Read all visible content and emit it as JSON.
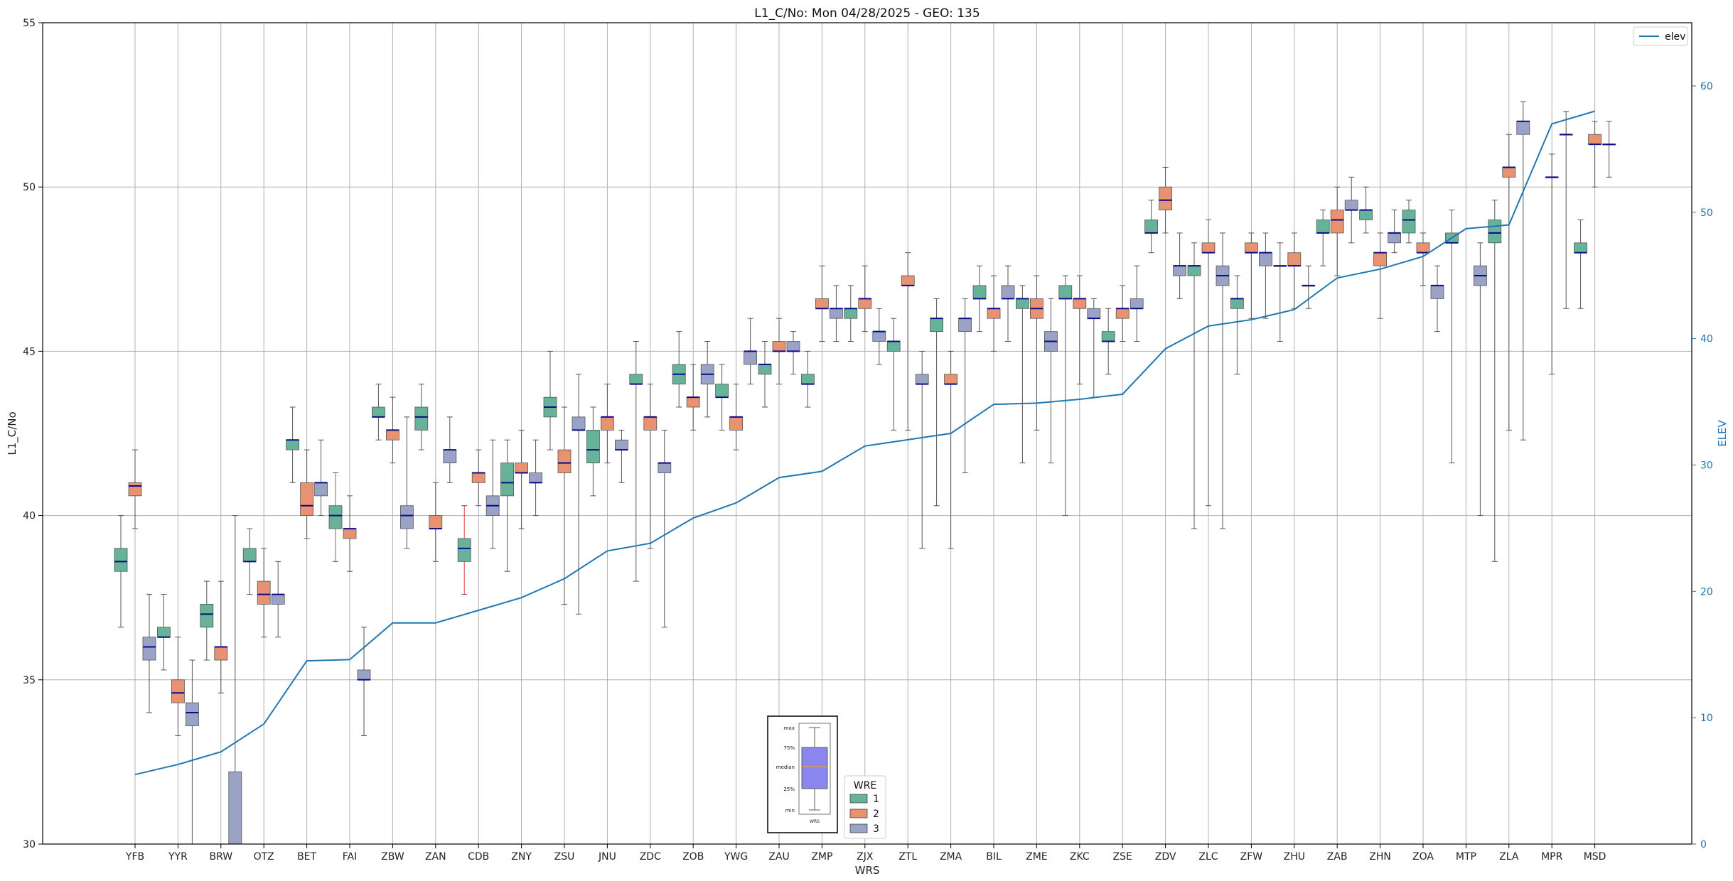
{
  "chart_data": {
    "type": "box",
    "title": "L1_C/No: Mon 04/28/2025 - GEO: 135",
    "xlabel": "WRS",
    "ylabel": "L1_C/No",
    "y2label": "ELEV",
    "ylim": [
      30,
      55
    ],
    "y2lim": [
      0,
      65
    ],
    "yticks": [
      30,
      35,
      40,
      45,
      50,
      55
    ],
    "y2ticks": [
      0,
      10,
      20,
      30,
      40,
      50,
      60
    ],
    "grid": true,
    "categories": [
      "YFB",
      "YYR",
      "BRW",
      "OTZ",
      "BET",
      "FAI",
      "ZBW",
      "ZAN",
      "CDB",
      "ZNY",
      "ZSU",
      "JNU",
      "ZDC",
      "ZOB",
      "YWG",
      "ZAU",
      "ZMP",
      "ZJX",
      "ZTL",
      "ZMA",
      "BIL",
      "ZME",
      "ZKC",
      "ZSE",
      "ZDV",
      "ZLC",
      "ZFW",
      "ZHU",
      "ZAB",
      "ZHN",
      "ZOA",
      "MTP",
      "ZLA",
      "MPR",
      "MSD"
    ],
    "elev_series": {
      "name": "elev",
      "color": "#1f77b4",
      "values": [
        5.5,
        6.3,
        7.3,
        9.5,
        14.5,
        14.6,
        17.5,
        17.5,
        18.5,
        19.5,
        21.0,
        23.2,
        23.8,
        25.8,
        27.0,
        29.0,
        29.5,
        31.5,
        32.0,
        32.5,
        34.8,
        34.9,
        35.2,
        35.6,
        39.2,
        41.0,
        41.5,
        42.3,
        44.8,
        45.5,
        46.5,
        48.7,
        49.0,
        57.0,
        58.0
      ]
    },
    "wre_legend": {
      "title": "WRE",
      "entries": [
        {
          "label": "1",
          "color": "#66b39a"
        },
        {
          "label": "2",
          "color": "#e89272"
        },
        {
          "label": "3",
          "color": "#9aa3c6"
        }
      ]
    },
    "line_legend": {
      "label": "elev"
    },
    "inset_legend": {
      "labels": [
        "max",
        "75%",
        "median",
        "25%",
        "min"
      ],
      "xlabel": "WRS"
    },
    "boxes": [
      {
        "wrs": "YFB",
        "wre": 1,
        "min": 36.6,
        "q1": 38.3,
        "median": 38.6,
        "q3": 39.0,
        "max": 40.0
      },
      {
        "wrs": "YFB",
        "wre": 2,
        "min": 39.6,
        "q1": 40.6,
        "median": 40.9,
        "q3": 41.0,
        "max": 42.0
      },
      {
        "wrs": "YFB",
        "wre": 3,
        "min": 34.0,
        "q1": 35.6,
        "median": 36.0,
        "q3": 36.3,
        "max": 37.6
      },
      {
        "wrs": "YYR",
        "wre": 1,
        "min": 35.3,
        "q1": 36.3,
        "median": 36.3,
        "q3": 36.6,
        "max": 37.6
      },
      {
        "wrs": "YYR",
        "wre": 2,
        "min": 33.3,
        "q1": 34.3,
        "median": 34.6,
        "q3": 35.0,
        "max": 36.3
      },
      {
        "wrs": "YYR",
        "wre": 3,
        "min": 30.0,
        "q1": 33.6,
        "median": 34.0,
        "q3": 34.3,
        "max": 35.6
      },
      {
        "wrs": "BRW",
        "wre": 1,
        "min": 35.6,
        "q1": 36.6,
        "median": 37.0,
        "q3": 37.3,
        "max": 38.0
      },
      {
        "wrs": "BRW",
        "wre": 2,
        "min": 34.6,
        "q1": 35.6,
        "median": 36.0,
        "q3": 36.0,
        "max": 38.0
      },
      {
        "wrs": "BRW",
        "wre": 3,
        "min": 30.0,
        "q1": 30.0,
        "median": 30.0,
        "q3": 32.2,
        "max": 40.0
      },
      {
        "wrs": "OTZ",
        "wre": 1,
        "min": 37.6,
        "q1": 38.6,
        "median": 38.6,
        "q3": 39.0,
        "max": 39.6
      },
      {
        "wrs": "OTZ",
        "wre": 2,
        "min": 36.3,
        "q1": 37.3,
        "median": 37.6,
        "q3": 38.0,
        "max": 39.0
      },
      {
        "wrs": "OTZ",
        "wre": 3,
        "min": 36.3,
        "q1": 37.3,
        "median": 37.6,
        "q3": 37.6,
        "max": 38.6
      },
      {
        "wrs": "BET",
        "wre": 1,
        "min": 41.0,
        "q1": 42.0,
        "median": 42.3,
        "q3": 42.3,
        "max": 43.3
      },
      {
        "wrs": "BET",
        "wre": 2,
        "min": 39.3,
        "q1": 40.0,
        "median": 40.3,
        "q3": 41.0,
        "max": 42.0
      },
      {
        "wrs": "BET",
        "wre": 3,
        "min": 40.0,
        "q1": 40.6,
        "median": 41.0,
        "q3": 41.0,
        "max": 42.3
      },
      {
        "wrs": "FAI",
        "wre": 1,
        "min": 38.6,
        "q1": 39.6,
        "median": 40.0,
        "q3": 40.3,
        "max": 41.3,
        "whisker": "red"
      },
      {
        "wrs": "FAI",
        "wre": 2,
        "min": 38.3,
        "q1": 39.3,
        "median": 39.6,
        "q3": 39.6,
        "max": 40.6
      },
      {
        "wrs": "FAI",
        "wre": 3,
        "min": 33.3,
        "q1": 35.0,
        "median": 35.0,
        "q3": 35.3,
        "max": 36.6
      },
      {
        "wrs": "ZBW",
        "wre": 1,
        "min": 42.3,
        "q1": 43.0,
        "median": 43.0,
        "q3": 43.3,
        "max": 44.0
      },
      {
        "wrs": "ZBW",
        "wre": 2,
        "min": 41.6,
        "q1": 42.3,
        "median": 42.6,
        "q3": 42.6,
        "max": 43.6
      },
      {
        "wrs": "ZBW",
        "wre": 3,
        "min": 39.0,
        "q1": 39.6,
        "median": 40.0,
        "q3": 40.3,
        "max": 43.0
      },
      {
        "wrs": "ZAN",
        "wre": 1,
        "min": 42.0,
        "q1": 42.6,
        "median": 43.0,
        "q3": 43.3,
        "max": 44.0
      },
      {
        "wrs": "ZAN",
        "wre": 2,
        "min": 38.6,
        "q1": 39.6,
        "median": 39.6,
        "q3": 40.0,
        "max": 41.0
      },
      {
        "wrs": "ZAN",
        "wre": 3,
        "min": 41.0,
        "q1": 41.6,
        "median": 42.0,
        "q3": 42.0,
        "max": 43.0
      },
      {
        "wrs": "CDB",
        "wre": 1,
        "min": 37.6,
        "q1": 38.6,
        "median": 39.0,
        "q3": 39.3,
        "max": 40.3,
        "whisker": "red"
      },
      {
        "wrs": "CDB",
        "wre": 2,
        "min": 40.3,
        "q1": 41.0,
        "median": 41.3,
        "q3": 41.3,
        "max": 42.0
      },
      {
        "wrs": "CDB",
        "wre": 3,
        "min": 39.0,
        "q1": 40.0,
        "median": 40.3,
        "q3": 40.6,
        "max": 42.3
      },
      {
        "wrs": "ZNY",
        "wre": 1,
        "min": 38.3,
        "q1": 40.6,
        "median": 41.0,
        "q3": 41.6,
        "max": 42.3
      },
      {
        "wrs": "ZNY",
        "wre": 2,
        "min": 39.6,
        "q1": 41.3,
        "median": 41.3,
        "q3": 41.6,
        "max": 42.6
      },
      {
        "wrs": "ZNY",
        "wre": 3,
        "min": 40.0,
        "q1": 41.0,
        "median": 41.0,
        "q3": 41.3,
        "max": 42.3
      },
      {
        "wrs": "ZSU",
        "wre": 1,
        "min": 42.0,
        "q1": 43.0,
        "median": 43.3,
        "q3": 43.6,
        "max": 45.0
      },
      {
        "wrs": "ZSU",
        "wre": 2,
        "min": 37.3,
        "q1": 41.3,
        "median": 41.6,
        "q3": 42.0,
        "max": 43.3
      },
      {
        "wrs": "ZSU",
        "wre": 3,
        "min": 37.0,
        "q1": 42.6,
        "median": 42.6,
        "q3": 43.0,
        "max": 44.3
      },
      {
        "wrs": "JNU",
        "wre": 1,
        "min": 40.6,
        "q1": 41.6,
        "median": 42.0,
        "q3": 42.6,
        "max": 43.3
      },
      {
        "wrs": "JNU",
        "wre": 2,
        "min": 41.6,
        "q1": 42.6,
        "median": 43.0,
        "q3": 43.0,
        "max": 44.0
      },
      {
        "wrs": "JNU",
        "wre": 3,
        "min": 41.0,
        "q1": 42.0,
        "median": 42.0,
        "q3": 42.3,
        "max": 42.6
      },
      {
        "wrs": "ZDC",
        "wre": 1,
        "min": 38.0,
        "q1": 44.0,
        "median": 44.0,
        "q3": 44.3,
        "max": 45.3
      },
      {
        "wrs": "ZDC",
        "wre": 2,
        "min": 39.0,
        "q1": 42.6,
        "median": 43.0,
        "q3": 43.0,
        "max": 44.0
      },
      {
        "wrs": "ZDC",
        "wre": 3,
        "min": 36.6,
        "q1": 41.3,
        "median": 41.6,
        "q3": 41.6,
        "max": 42.6
      },
      {
        "wrs": "ZOB",
        "wre": 1,
        "min": 43.3,
        "q1": 44.0,
        "median": 44.3,
        "q3": 44.6,
        "max": 45.6
      },
      {
        "wrs": "ZOB",
        "wre": 2,
        "min": 42.6,
        "q1": 43.3,
        "median": 43.6,
        "q3": 43.6,
        "max": 44.6
      },
      {
        "wrs": "ZOB",
        "wre": 3,
        "min": 43.0,
        "q1": 44.0,
        "median": 44.3,
        "q3": 44.6,
        "max": 45.3
      },
      {
        "wrs": "YWG",
        "wre": 1,
        "min": 42.6,
        "q1": 43.6,
        "median": 43.6,
        "q3": 44.0,
        "max": 44.6
      },
      {
        "wrs": "YWG",
        "wre": 2,
        "min": 42.0,
        "q1": 42.6,
        "median": 43.0,
        "q3": 43.0,
        "max": 44.0
      },
      {
        "wrs": "YWG",
        "wre": 3,
        "min": 44.0,
        "q1": 44.6,
        "median": 45.0,
        "q3": 45.0,
        "max": 46.0
      },
      {
        "wrs": "ZAU",
        "wre": 1,
        "min": 43.3,
        "q1": 44.3,
        "median": 44.6,
        "q3": 44.6,
        "max": 45.3
      },
      {
        "wrs": "ZAU",
        "wre": 2,
        "min": 44.0,
        "q1": 45.0,
        "median": 45.0,
        "q3": 45.3,
        "max": 46.0
      },
      {
        "wrs": "ZAU",
        "wre": 3,
        "min": 44.3,
        "q1": 45.0,
        "median": 45.0,
        "q3": 45.3,
        "max": 45.6
      },
      {
        "wrs": "ZMP",
        "wre": 1,
        "min": 43.3,
        "q1": 44.0,
        "median": 44.0,
        "q3": 44.3,
        "max": 45.0
      },
      {
        "wrs": "ZMP",
        "wre": 2,
        "min": 45.3,
        "q1": 46.3,
        "median": 46.3,
        "q3": 46.6,
        "max": 47.6
      },
      {
        "wrs": "ZMP",
        "wre": 3,
        "min": 45.3,
        "q1": 46.0,
        "median": 46.3,
        "q3": 46.3,
        "max": 47.0
      },
      {
        "wrs": "ZJX",
        "wre": 1,
        "min": 45.3,
        "q1": 46.0,
        "median": 46.3,
        "q3": 46.3,
        "max": 47.0
      },
      {
        "wrs": "ZJX",
        "wre": 2,
        "min": 45.6,
        "q1": 46.3,
        "median": 46.6,
        "q3": 46.6,
        "max": 47.6
      },
      {
        "wrs": "ZJX",
        "wre": 3,
        "min": 44.6,
        "q1": 45.3,
        "median": 45.6,
        "q3": 45.6,
        "max": 46.3
      },
      {
        "wrs": "ZTL",
        "wre": 1,
        "min": 42.6,
        "q1": 45.0,
        "median": 45.3,
        "q3": 45.3,
        "max": 46.0
      },
      {
        "wrs": "ZTL",
        "wre": 2,
        "min": 42.6,
        "q1": 47.0,
        "median": 47.0,
        "q3": 47.3,
        "max": 48.0
      },
      {
        "wrs": "ZTL",
        "wre": 3,
        "min": 39.0,
        "q1": 44.0,
        "median": 44.0,
        "q3": 44.3,
        "max": 45.0
      },
      {
        "wrs": "ZMA",
        "wre": 1,
        "min": 40.3,
        "q1": 45.6,
        "median": 46.0,
        "q3": 46.0,
        "max": 46.6
      },
      {
        "wrs": "ZMA",
        "wre": 2,
        "min": 39.0,
        "q1": 44.0,
        "median": 44.0,
        "q3": 44.3,
        "max": 45.0
      },
      {
        "wrs": "ZMA",
        "wre": 3,
        "min": 41.3,
        "q1": 45.6,
        "median": 46.0,
        "q3": 46.0,
        "max": 46.6
      },
      {
        "wrs": "BIL",
        "wre": 1,
        "min": 45.6,
        "q1": 46.6,
        "median": 46.6,
        "q3": 47.0,
        "max": 47.6
      },
      {
        "wrs": "BIL",
        "wre": 2,
        "min": 45.0,
        "q1": 46.0,
        "median": 46.3,
        "q3": 46.3,
        "max": 47.3
      },
      {
        "wrs": "BIL",
        "wre": 3,
        "min": 45.3,
        "q1": 46.6,
        "median": 46.6,
        "q3": 47.0,
        "max": 47.6
      },
      {
        "wrs": "ZME",
        "wre": 1,
        "min": 41.6,
        "q1": 46.3,
        "median": 46.6,
        "q3": 46.6,
        "max": 47.0
      },
      {
        "wrs": "ZME",
        "wre": 2,
        "min": 42.6,
        "q1": 46.0,
        "median": 46.3,
        "q3": 46.6,
        "max": 47.3
      },
      {
        "wrs": "ZME",
        "wre": 3,
        "min": 41.6,
        "q1": 45.0,
        "median": 45.3,
        "q3": 45.6,
        "max": 46.6
      },
      {
        "wrs": "ZKC",
        "wre": 1,
        "min": 40.0,
        "q1": 46.6,
        "median": 46.6,
        "q3": 47.0,
        "max": 47.3
      },
      {
        "wrs": "ZKC",
        "wre": 2,
        "min": 44.0,
        "q1": 46.3,
        "median": 46.6,
        "q3": 46.6,
        "max": 47.3
      },
      {
        "wrs": "ZKC",
        "wre": 3,
        "min": 43.6,
        "q1": 46.0,
        "median": 46.0,
        "q3": 46.3,
        "max": 46.6
      },
      {
        "wrs": "ZSE",
        "wre": 1,
        "min": 44.3,
        "q1": 45.3,
        "median": 45.3,
        "q3": 45.6,
        "max": 46.3
      },
      {
        "wrs": "ZSE",
        "wre": 2,
        "min": 45.3,
        "q1": 46.0,
        "median": 46.3,
        "q3": 46.3,
        "max": 47.0
      },
      {
        "wrs": "ZSE",
        "wre": 3,
        "min": 45.3,
        "q1": 46.3,
        "median": 46.3,
        "q3": 46.6,
        "max": 47.6
      },
      {
        "wrs": "ZDV",
        "wre": 1,
        "min": 48.0,
        "q1": 48.6,
        "median": 48.6,
        "q3": 49.0,
        "max": 49.6
      },
      {
        "wrs": "ZDV",
        "wre": 2,
        "min": 48.6,
        "q1": 49.3,
        "median": 49.6,
        "q3": 50.0,
        "max": 50.6
      },
      {
        "wrs": "ZDV",
        "wre": 3,
        "min": 46.6,
        "q1": 47.3,
        "median": 47.6,
        "q3": 47.6,
        "max": 48.6
      },
      {
        "wrs": "ZLC",
        "wre": 1,
        "min": 39.6,
        "q1": 47.3,
        "median": 47.6,
        "q3": 47.6,
        "max": 48.3
      },
      {
        "wrs": "ZLC",
        "wre": 2,
        "min": 40.3,
        "q1": 48.0,
        "median": 48.0,
        "q3": 48.3,
        "max": 49.0
      },
      {
        "wrs": "ZLC",
        "wre": 3,
        "min": 39.6,
        "q1": 47.0,
        "median": 47.3,
        "q3": 47.6,
        "max": 48.6
      },
      {
        "wrs": "ZFW",
        "wre": 1,
        "min": 44.3,
        "q1": 46.3,
        "median": 46.6,
        "q3": 46.6,
        "max": 47.3
      },
      {
        "wrs": "ZFW",
        "wre": 2,
        "min": 46.0,
        "q1": 48.0,
        "median": 48.0,
        "q3": 48.3,
        "max": 48.6
      },
      {
        "wrs": "ZFW",
        "wre": 3,
        "min": 46.0,
        "q1": 47.6,
        "median": 48.0,
        "q3": 48.0,
        "max": 48.6
      },
      {
        "wrs": "ZHU",
        "wre": 1,
        "min": 45.3,
        "q1": 47.6,
        "median": 47.6,
        "q3": 47.6,
        "max": 48.3
      },
      {
        "wrs": "ZHU",
        "wre": 2,
        "min": 46.3,
        "q1": 47.6,
        "median": 47.6,
        "q3": 48.0,
        "max": 48.6
      },
      {
        "wrs": "ZHU",
        "wre": 3,
        "min": 46.3,
        "q1": 47.0,
        "median": 47.0,
        "q3": 47.0,
        "max": 47.6
      },
      {
        "wrs": "ZAB",
        "wre": 1,
        "min": 47.6,
        "q1": 48.6,
        "median": 48.6,
        "q3": 49.0,
        "max": 49.3
      },
      {
        "wrs": "ZAB",
        "wre": 2,
        "min": 47.3,
        "q1": 48.6,
        "median": 49.0,
        "q3": 49.3,
        "max": 50.0
      },
      {
        "wrs": "ZAB",
        "wre": 3,
        "min": 48.3,
        "q1": 49.3,
        "median": 49.3,
        "q3": 49.6,
        "max": 50.3
      },
      {
        "wrs": "ZHN",
        "wre": 1,
        "min": 48.6,
        "q1": 49.0,
        "median": 49.3,
        "q3": 49.3,
        "max": 50.0
      },
      {
        "wrs": "ZHN",
        "wre": 2,
        "min": 46.0,
        "q1": 47.6,
        "median": 48.0,
        "q3": 48.0,
        "max": 48.6
      },
      {
        "wrs": "ZHN",
        "wre": 3,
        "min": 48.0,
        "q1": 48.3,
        "median": 48.6,
        "q3": 48.6,
        "max": 49.3
      },
      {
        "wrs": "ZOA",
        "wre": 1,
        "min": 48.3,
        "q1": 48.6,
        "median": 49.0,
        "q3": 49.3,
        "max": 49.6
      },
      {
        "wrs": "ZOA",
        "wre": 2,
        "min": 47.0,
        "q1": 48.0,
        "median": 48.0,
        "q3": 48.3,
        "max": 48.6
      },
      {
        "wrs": "ZOA",
        "wre": 3,
        "min": 45.6,
        "q1": 46.6,
        "median": 47.0,
        "q3": 47.0,
        "max": 47.6
      },
      {
        "wrs": "MTP",
        "wre": 1,
        "min": 41.6,
        "q1": 48.3,
        "median": 48.3,
        "q3": 48.6,
        "max": 49.3
      },
      {
        "wrs": "MTP",
        "wre": 3,
        "min": 40.0,
        "q1": 47.0,
        "median": 47.3,
        "q3": 47.6,
        "max": 48.3
      },
      {
        "wrs": "ZLA",
        "wre": 1,
        "min": 38.6,
        "q1": 48.3,
        "median": 48.6,
        "q3": 49.0,
        "max": 49.6
      },
      {
        "wrs": "ZLA",
        "wre": 2,
        "min": 42.6,
        "q1": 50.3,
        "median": 50.6,
        "q3": 50.6,
        "max": 51.6
      },
      {
        "wrs": "ZLA",
        "wre": 3,
        "min": 42.3,
        "q1": 51.6,
        "median": 52.0,
        "q3": 52.0,
        "max": 52.6
      },
      {
        "wrs": "MPR",
        "wre": 2,
        "min": 44.3,
        "q1": 50.3,
        "median": 50.3,
        "q3": 50.3,
        "max": 51.0
      },
      {
        "wrs": "MPR",
        "wre": 3,
        "min": 46.3,
        "q1": 51.6,
        "median": 51.6,
        "q3": 51.6,
        "max": 52.3
      },
      {
        "wrs": "MSD",
        "wre": 1,
        "min": 46.3,
        "q1": 48.0,
        "median": 48.0,
        "q3": 48.3,
        "max": 49.0
      },
      {
        "wrs": "MSD",
        "wre": 2,
        "min": 50.0,
        "q1": 51.3,
        "median": 51.3,
        "q3": 51.6,
        "max": 52.0
      },
      {
        "wrs": "MSD",
        "wre": 3,
        "min": 50.3,
        "q1": 51.3,
        "median": 51.3,
        "q3": 51.3,
        "max": 52.0
      }
    ]
  }
}
